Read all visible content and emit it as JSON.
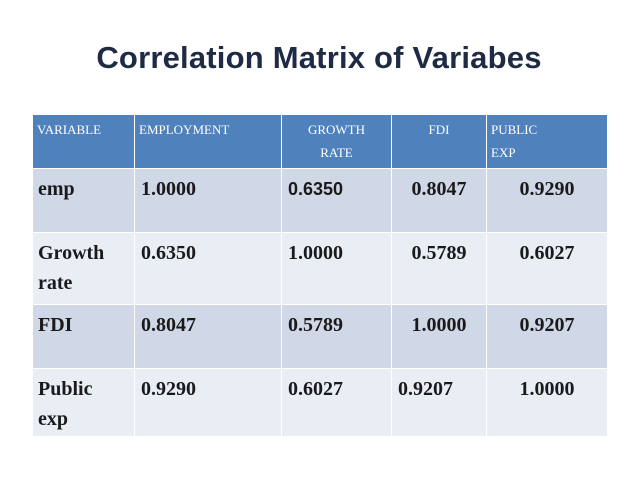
{
  "slide": {
    "title": "Correlation Matrix of Variabes"
  },
  "table": {
    "headers": [
      {
        "line1": "VARIABLE",
        "line2": ""
      },
      {
        "line1": "EMPLOYMENT",
        "line2": ""
      },
      {
        "line1": "GROWTH",
        "line2": "RATE"
      },
      {
        "line1": "FDI",
        "line2": ""
      },
      {
        "line1": "PUBLIC",
        "line2": "EXP"
      }
    ],
    "rows": [
      {
        "label_line1": "emp",
        "label_line2": "",
        "values": [
          "1.0000",
          "0.6350",
          "0.8047",
          "0.9290"
        ]
      },
      {
        "label_line1": "Growth",
        "label_line2": "rate",
        "values": [
          "0.6350",
          "1.0000",
          "0.5789",
          "0.6027"
        ]
      },
      {
        "label_line1": "FDI",
        "label_line2": "",
        "values": [
          "0.8047",
          "0.5789",
          "1.0000",
          "0.9207"
        ]
      },
      {
        "label_line1": "Public",
        "label_line2": "exp",
        "values": [
          "0.9290",
          "0.6027",
          "0.9207",
          "1.0000"
        ]
      }
    ]
  },
  "colors": {
    "header_bg": "#4f81bd",
    "row_odd_bg": "#d0d8e8",
    "row_even_bg": "#e9edf4",
    "title_color": "#1f2a44"
  }
}
